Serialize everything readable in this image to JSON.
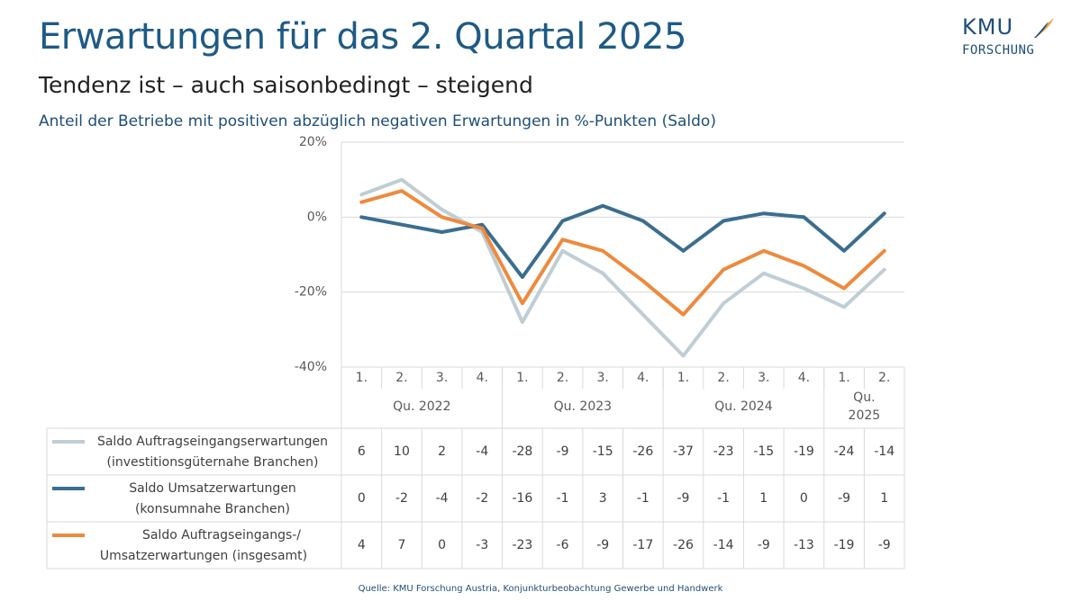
{
  "header": {
    "title": "Erwartungen für das 2. Quartal 2025",
    "subtitle": "Tendenz ist – auch saisonbedingt – steigend",
    "caption": "Anteil der Betriebe mit positiven abzüglich negativen Erwartungen in %-Punkten (Saldo)"
  },
  "logo": {
    "top": "KMU",
    "bottom": "FORSCHUNG"
  },
  "source": "Quelle: KMU Forschung Austria, Konjunkturbeobachtung Gewerbe und Handwerk",
  "chart_data": {
    "type": "line",
    "ylim": [
      -40,
      20
    ],
    "yticks": [
      "20%",
      "0%",
      "-20%",
      "-40%"
    ],
    "ytick_values": [
      20,
      0,
      -20,
      -40
    ],
    "grid": true,
    "categories": [
      "1.",
      "2.",
      "3.",
      "4.",
      "1.",
      "2.",
      "3.",
      "4.",
      "1.",
      "2.",
      "3.",
      "4.",
      "1.",
      "2."
    ],
    "year_groups": [
      {
        "label": "Qu. 2022",
        "count": 4
      },
      {
        "label": "Qu. 2023",
        "count": 4
      },
      {
        "label": "Qu. 2024",
        "count": 4
      },
      {
        "label": "Qu.\n2025",
        "count": 2
      }
    ],
    "series": [
      {
        "name": "Saldo Auftragseingangserwartungen (investitionsgüternahe Branchen)",
        "label_lines": [
          "Saldo Auftragseingangserwartungen",
          "(investitionsgüternahe Branchen)"
        ],
        "color": "#bfcdd4",
        "values": [
          6,
          10,
          2,
          -4,
          -28,
          -9,
          -15,
          -26,
          -37,
          -23,
          -15,
          -19,
          -24,
          -14
        ]
      },
      {
        "name": "Saldo Umsatzerwartungen (konsumnahe Branchen)",
        "label_lines": [
          "Saldo Umsatzerwartungen",
          "(konsumnahe Branchen)"
        ],
        "color": "#3b6e8f",
        "values": [
          0,
          -2,
          -4,
          -2,
          -16,
          -1,
          3,
          -1,
          -9,
          -1,
          1,
          0,
          -9,
          1
        ]
      },
      {
        "name": "Saldo Auftragseingangs-/ Umsatzerwartungen (insgesamt)",
        "label_lines": [
          "Saldo Auftragseingangs-/",
          "Umsatzerwartungen (insgesamt)"
        ],
        "color": "#ee8a3e",
        "values": [
          4,
          7,
          0,
          -3,
          -23,
          -6,
          -9,
          -17,
          -26,
          -14,
          -9,
          -13,
          -19,
          -9
        ]
      }
    ]
  }
}
